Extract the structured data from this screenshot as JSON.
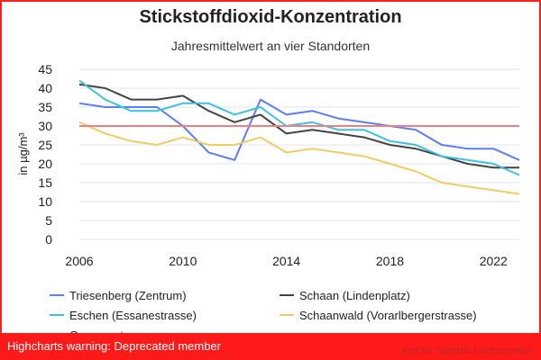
{
  "chart_data": {
    "type": "line",
    "title": "Stickstoffdioxid-Konzentration",
    "subtitle": "Jahresmittelwert an vier Standorten",
    "ylabel": "in µg/m³",
    "xlabel": "",
    "ylim": [
      0,
      45
    ],
    "yticks": [
      0,
      5,
      10,
      15,
      20,
      25,
      30,
      35,
      40,
      45
    ],
    "xlim": [
      2006,
      2023
    ],
    "xticks": [
      2006,
      2010,
      2014,
      2018,
      2022
    ],
    "x": [
      2006,
      2007,
      2008,
      2009,
      2010,
      2011,
      2012,
      2013,
      2014,
      2015,
      2016,
      2017,
      2018,
      2019,
      2020,
      2021,
      2022,
      2023
    ],
    "series": [
      {
        "name": "Triesenberg (Zentrum)",
        "color": "#5b7ff0",
        "values": [
          36,
          35,
          35,
          35,
          30,
          23,
          21,
          37,
          33,
          34,
          32,
          31,
          30,
          29,
          25,
          24,
          24,
          21
        ]
      },
      {
        "name": "Schaan (Lindenplatz)",
        "color": "#444444",
        "values": [
          41,
          40,
          37,
          37,
          38,
          34,
          31,
          33,
          28,
          29,
          28,
          27,
          25,
          24,
          22,
          20,
          19,
          19
        ]
      },
      {
        "name": "Eschen (Essanestrasse)",
        "color": "#3ec0e0",
        "values": [
          42,
          37,
          34,
          34,
          36,
          36,
          33,
          35,
          30,
          31,
          29,
          29,
          26,
          25,
          22,
          21,
          20,
          17
        ]
      },
      {
        "name": "Schaanwald (Vorarlbergerstrasse)",
        "color": "#f0cc66",
        "values": [
          31,
          28,
          26,
          25,
          27,
          25,
          25,
          27,
          23,
          24,
          23,
          22,
          20,
          18,
          15,
          14,
          13,
          12
        ]
      },
      {
        "name": "Grenzwert",
        "color": "#f08080",
        "values": [
          30,
          30,
          30,
          30,
          30,
          30,
          30,
          30,
          30,
          30,
          30,
          30,
          30,
          30,
          30,
          30,
          30,
          30
        ]
      }
    ],
    "legend_position": "bottom"
  },
  "warning": "Highcharts warning: Deprecated member",
  "credits": "Amt für Statistik Liechtenstein"
}
